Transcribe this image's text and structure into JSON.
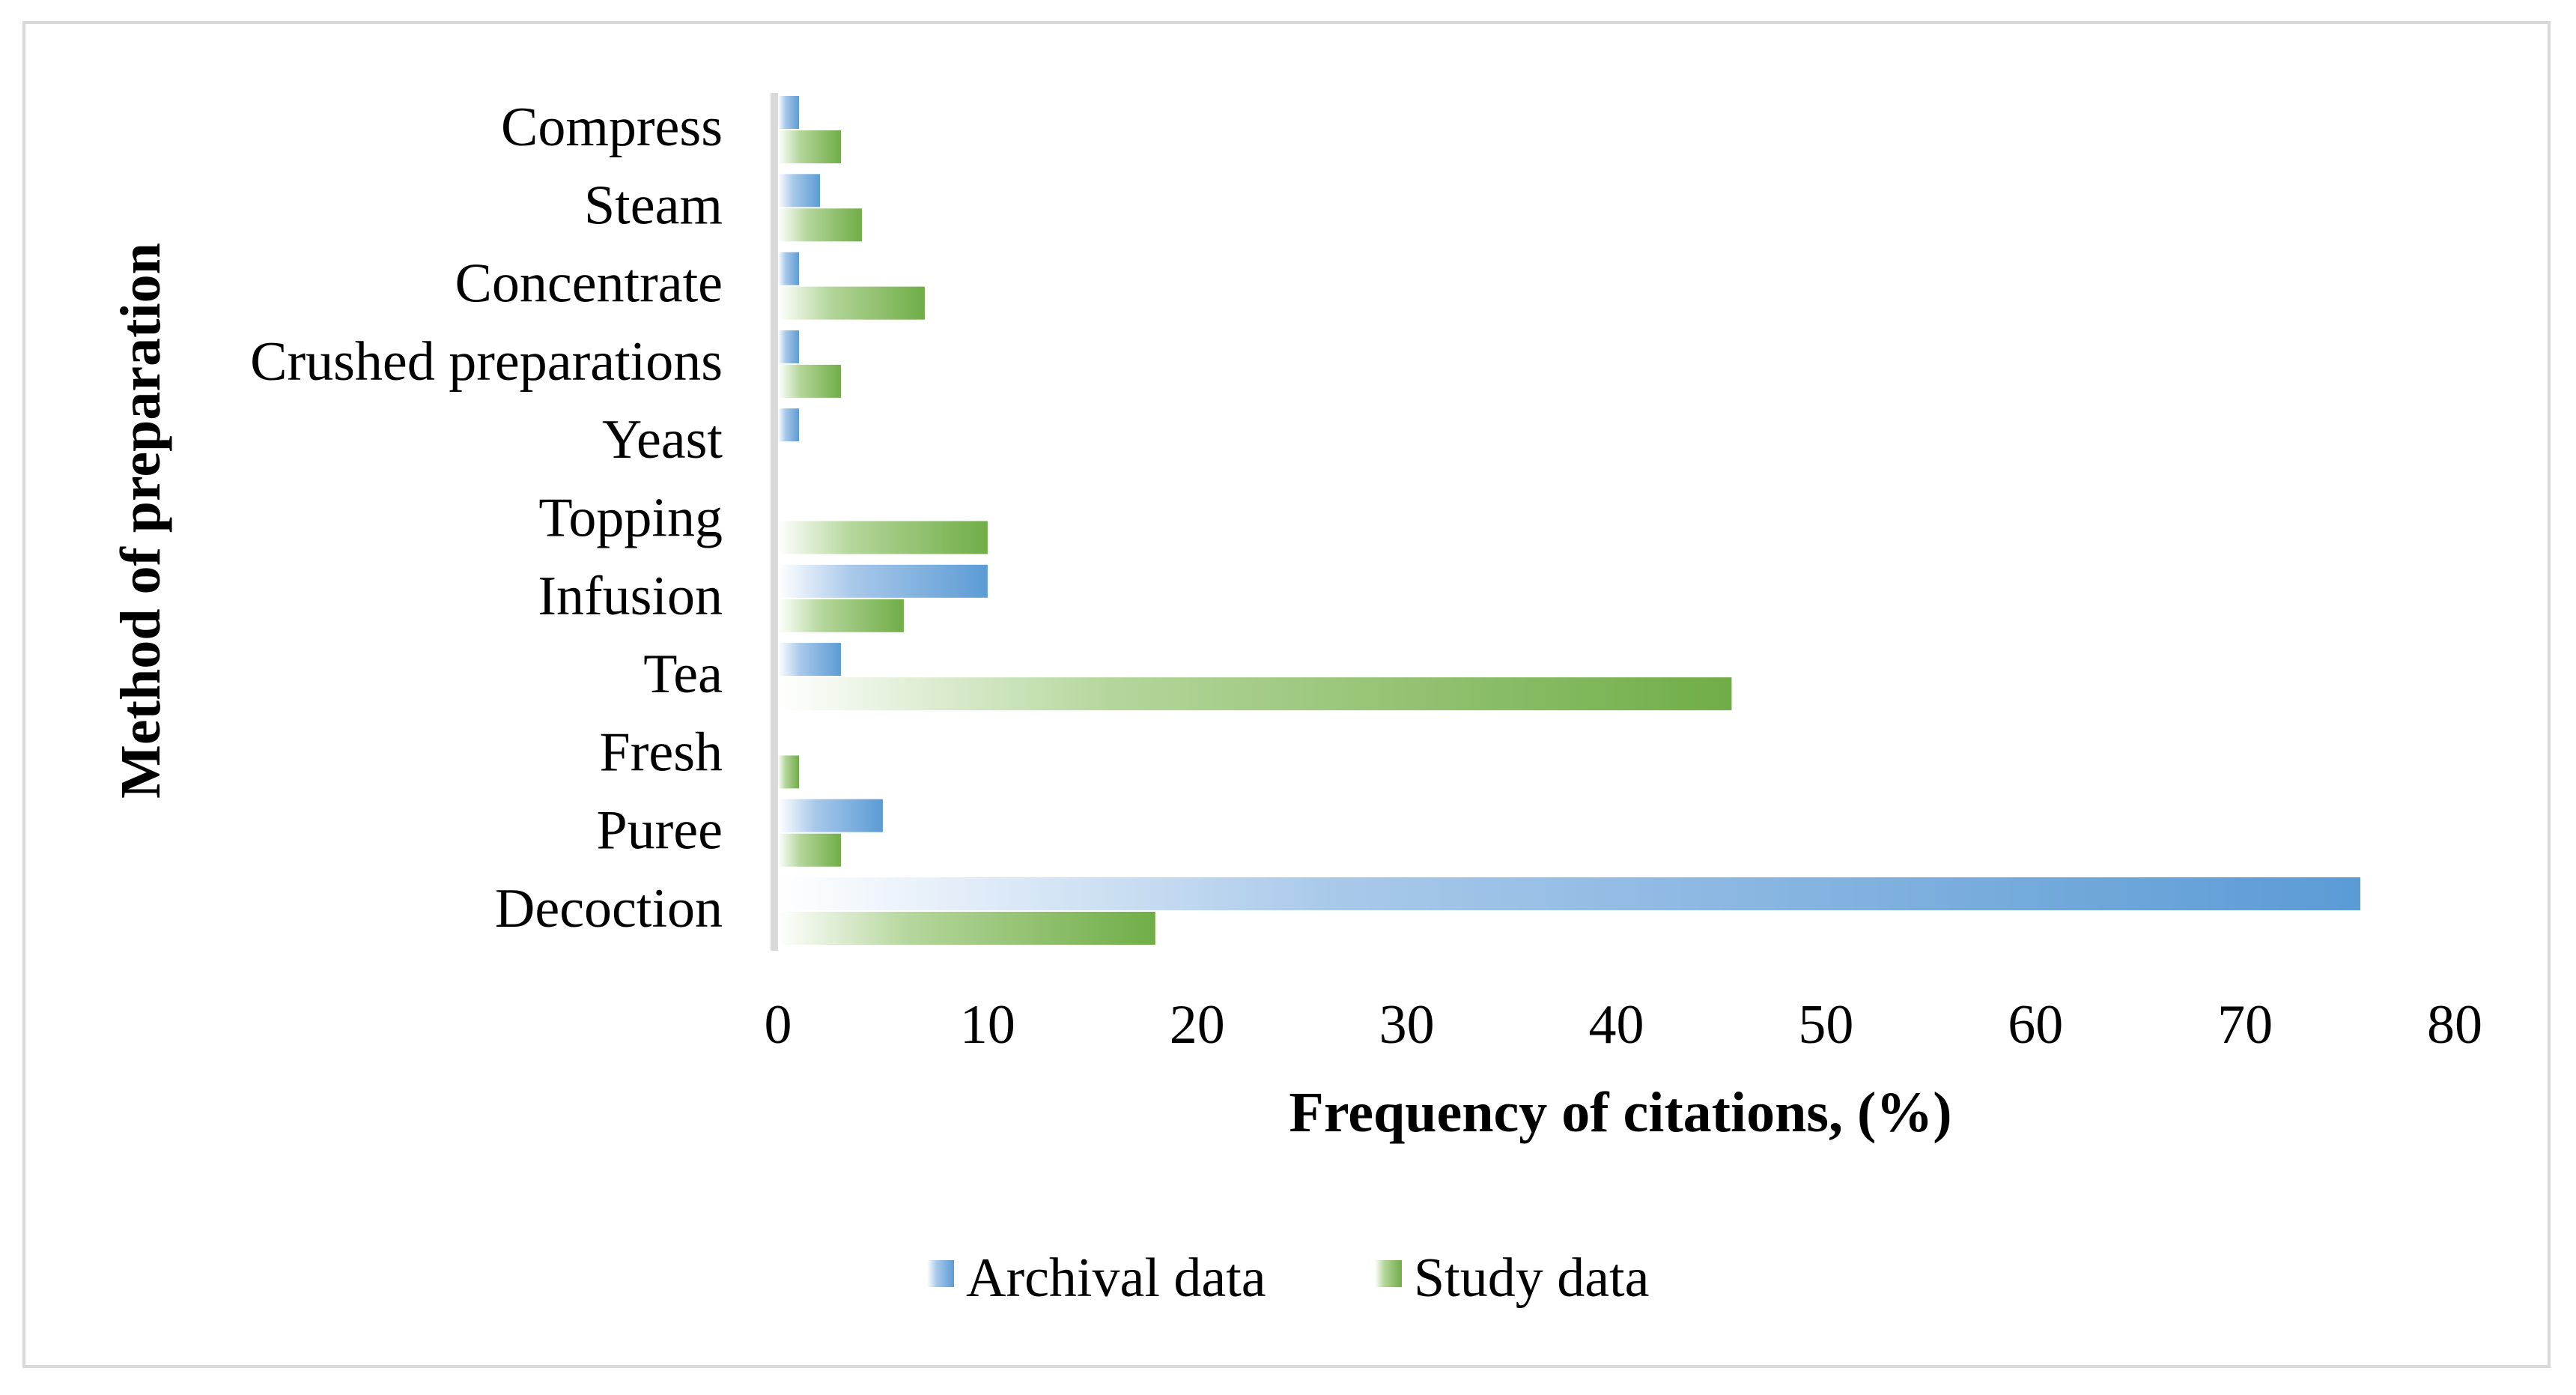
{
  "chart_data": {
    "type": "bar",
    "orientation": "horizontal",
    "categories": [
      "Compress",
      "Steam",
      "Concentrate",
      "Crushed preparations",
      "Yeast",
      "Topping",
      "Infusion",
      "Tea",
      "Fresh",
      "Puree",
      "Decoction"
    ],
    "series": [
      {
        "name": "Archival data",
        "color": "#5b9bd5",
        "values": [
          1,
          2,
          1,
          1,
          1,
          0,
          10,
          3,
          0,
          5,
          75.5
        ]
      },
      {
        "name": "Study data",
        "color": "#70ad47",
        "values": [
          3,
          4,
          7,
          3,
          0,
          10,
          6,
          45.5,
          1,
          3,
          18
        ]
      }
    ],
    "xlabel": "Frequency of citations, (%)",
    "ylabel": "Method of preparation",
    "xlim": [
      0,
      80
    ],
    "xticks": [
      0,
      10,
      20,
      30,
      40,
      50,
      60,
      70,
      80
    ],
    "legend_position": "bottom",
    "grid": false
  }
}
